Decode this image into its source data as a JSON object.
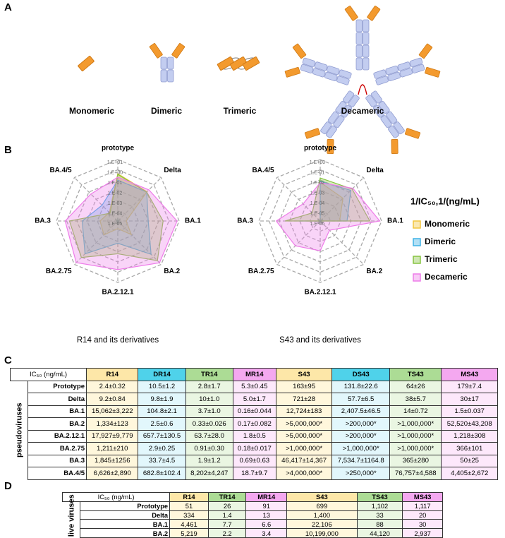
{
  "panel_labels": [
    "A",
    "B",
    "C",
    "D"
  ],
  "panel_a": {
    "labels": [
      "Monomeric",
      "Dimeric",
      "Trimeric",
      "Decameric"
    ]
  },
  "legend_title": "1/IC₅₀,1/(ng/mL)",
  "chart_data": [
    {
      "type": "radar",
      "subtitle": "R14 and its derivatives",
      "log_scale": true,
      "categories": [
        "prototype",
        "Delta",
        "BA.1",
        "BA.2",
        "BA.2.12.1",
        "BA.2.75",
        "BA.3",
        "BA.4/5"
      ],
      "ylim": [
        1e-05,
        10
      ],
      "yticks": [
        {
          "value": 10,
          "label": "1.E+01"
        },
        {
          "value": 1,
          "label": "1.E+00"
        },
        {
          "value": 0.1,
          "label": "1.E-01"
        },
        {
          "value": 0.01,
          "label": "1.E-02"
        },
        {
          "value": 0.001,
          "label": "1.E-03"
        },
        {
          "value": 0.0001,
          "label": "1.E-04"
        },
        {
          "value": 1e-05,
          "label": "1.E-05"
        }
      ],
      "series": [
        {
          "name": "Monomeric",
          "color": "#f2c53d",
          "values": [
            0.42,
            0.11,
            6.6e-05,
            0.00075,
            5.6e-05,
            0.00083,
            0.00054,
            0.00015
          ]
        },
        {
          "name": "Dimeric",
          "color": "#3fb2e6",
          "values": [
            0.095,
            0.1,
            0.0095,
            0.4,
            0.0015,
            0.34,
            0.03,
            0.0015
          ]
        },
        {
          "name": "Trimeric",
          "color": "#86c440",
          "values": [
            0.36,
            0.1,
            0.27,
            3.0,
            0.016,
            1.1,
            0.53,
            0.00012
          ]
        },
        {
          "name": "Decameric",
          "color": "#ee7ce9",
          "values": [
            0.19,
            0.2,
            6.3,
            5.9,
            0.56,
            5.6,
            1.4,
            0.053
          ]
        }
      ]
    },
    {
      "type": "radar",
      "subtitle": "S43 and its derivatives",
      "log_scale": true,
      "categories": [
        "prototype",
        "Delta",
        "BA.1",
        "BA.2",
        "BA.2.12.1",
        "BA.2.75",
        "BA.3",
        "BA.4/5"
      ],
      "ylim": [
        1e-06,
        1
      ],
      "yticks": [
        {
          "value": 1,
          "label": "1.E+00"
        },
        {
          "value": 0.1,
          "label": "1.E-01"
        },
        {
          "value": 0.01,
          "label": "1.E-02"
        },
        {
          "value": 0.001,
          "label": "1.E-03"
        },
        {
          "value": 0.0001,
          "label": "1.E-04"
        },
        {
          "value": 1e-05,
          "label": "1.E-05"
        },
        {
          "value": 1e-06,
          "label": "1.E-06"
        }
      ],
      "series": [
        {
          "name": "Monomeric",
          "color": "#f2c53d",
          "values": [
            0.0061,
            0.0014,
            7.9e-05,
            1e-06,
            1e-06,
            1e-06,
            2.2e-05,
            1e-06
          ]
        },
        {
          "name": "Dimeric",
          "color": "#3fb2e6",
          "values": [
            0.0076,
            0.017,
            0.00042,
            1e-06,
            1e-06,
            1e-06,
            0.00013,
            1e-06
          ]
        },
        {
          "name": "Trimeric",
          "color": "#86c440",
          "values": [
            0.016,
            0.026,
            0.071,
            1e-06,
            1e-06,
            1e-06,
            0.0027,
            1.3e-05
          ]
        },
        {
          "name": "Decameric",
          "color": "#ee7ce9",
          "values": [
            0.0056,
            0.033,
            0.67,
            1.9e-05,
            0.00082,
            0.0027,
            0.02,
            0.00023
          ]
        }
      ]
    }
  ],
  "table_c": {
    "header": [
      "IC₅₀ (ng/mL)",
      "R14",
      "DR14",
      "TR14",
      "MR14",
      "S43",
      "DS43",
      "TS43",
      "MS43"
    ],
    "group": "pseudoviruses",
    "rows": [
      [
        "Prototype",
        "2.4±0.32",
        "10.5±1.2",
        "2.8±1.7",
        "5.3±0.45",
        "163±95",
        "131.8±22.6",
        "64±26",
        "179±7.4"
      ],
      [
        "Delta",
        "9.2±0.84",
        "9.8±1.9",
        "10±1.0",
        "5.0±1.7",
        "721±28",
        "57.7±6.5",
        "38±5.7",
        "30±17"
      ],
      [
        "BA.1",
        "15,062±3,222",
        "104.8±2.1",
        "3.7±1.0",
        "0.16±0.044",
        "12,724±183",
        "2,407.5±46.5",
        "14±0.72",
        "1.5±0.037"
      ],
      [
        "BA.2",
        "1,334±123",
        "2.5±0.6",
        "0.33±0.026",
        "0.17±0.082",
        ">5,000,000*",
        ">200,000*",
        ">1,000,000*",
        "52,520±43,208"
      ],
      [
        "BA.2.12.1",
        "17,927±9,779",
        "657.7±130.5",
        "63.7±28.0",
        "1.8±0.5",
        ">5,000,000*",
        ">200,000*",
        ">1,000,000*",
        "1,218±308"
      ],
      [
        "BA.2.75",
        "1,211±210",
        "2.9±0.25",
        "0.91±0.30",
        "0.18±0.017",
        ">1,000,000*",
        ">1,000,000*",
        ">1,000,000*",
        "366±101"
      ],
      [
        "BA.3",
        "1,845±1256",
        "33.7±4.5",
        "1.9±1.2",
        "0.69±0.63",
        "46,417±14,367",
        "7,534.7±1164.8",
        "365±280",
        "50±25"
      ],
      [
        "BA.4/5",
        "6,626±2,890",
        "682.8±102.4",
        "8,202±4,247",
        "18.7±9.7",
        ">4,000,000*",
        ">250,000*",
        "76,757±4,588",
        "4,405±2,672"
      ]
    ]
  },
  "table_d": {
    "header": [
      "IC₅₀ (ng/mL)",
      "R14",
      "TR14",
      "MR14",
      "S43",
      "TS43",
      "MS43"
    ],
    "group": "live viruses",
    "rows": [
      [
        "Prototype",
        "51",
        "26",
        "91",
        "699",
        "1,102",
        "1,117"
      ],
      [
        "Delta",
        "334",
        "1.4",
        "13",
        "1,400",
        "33",
        "20"
      ],
      [
        "BA.1",
        "4,461",
        "7.7",
        "6.6",
        "22,106",
        "88",
        "30"
      ],
      [
        "BA.2",
        "5,219",
        "2.2",
        "3.4",
        "10,199,000",
        "44,120",
        "2,937"
      ]
    ]
  }
}
